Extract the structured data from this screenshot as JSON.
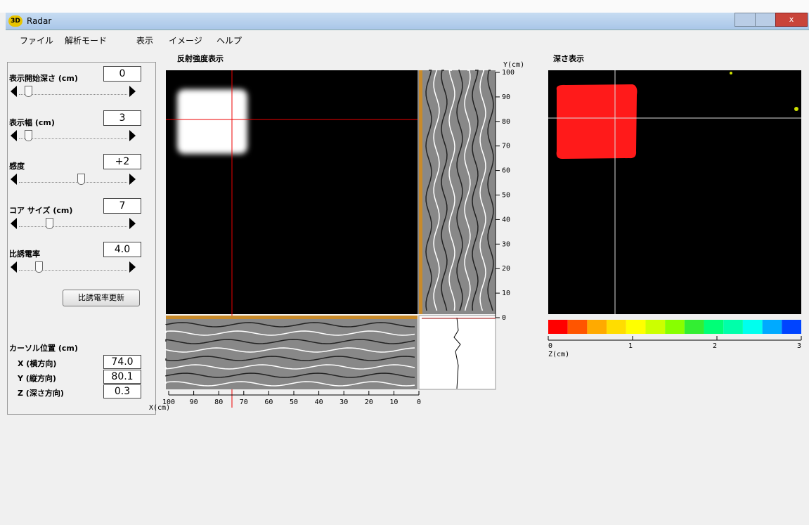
{
  "window": {
    "title": "Radar"
  },
  "menu": [
    "ファイル",
    "解析モード",
    "表示",
    "イメージ",
    "ヘルプ"
  ],
  "controls": [
    {
      "label": "表示開始深さ (cm)",
      "value": "0"
    },
    {
      "label": "表示幅 (cm)",
      "value": "3"
    },
    {
      "label": "感度",
      "value": "+2"
    },
    {
      "label": "コア サイズ (cm)",
      "value": "7"
    },
    {
      "label": "比誘電率",
      "value": "4.0"
    }
  ],
  "button": "比誘電率更新",
  "cursor": {
    "title": "カーソル位置 (cm)",
    "rows": [
      {
        "label": "X (横方向)",
        "value": "74.0"
      },
      {
        "label": "Y (縦方向)",
        "value": "80.1"
      },
      {
        "label": "Z (深さ方向)",
        "value": "0.3"
      }
    ]
  },
  "reflection": {
    "title": "反射強度表示",
    "y_axis_label": "Y(cm)",
    "yticks": [
      100,
      90,
      80,
      70,
      60,
      50,
      40,
      30,
      20,
      10,
      0
    ],
    "x_axis_label": "X(cm)",
    "xticks": [
      100,
      90,
      80,
      70,
      60,
      50,
      40,
      30,
      20,
      10,
      0
    ]
  },
  "depth": {
    "title": "深さ表示",
    "colorbar_label": "Z(cm)",
    "colorbar_ticks": [
      0,
      1,
      2,
      3
    ]
  }
}
